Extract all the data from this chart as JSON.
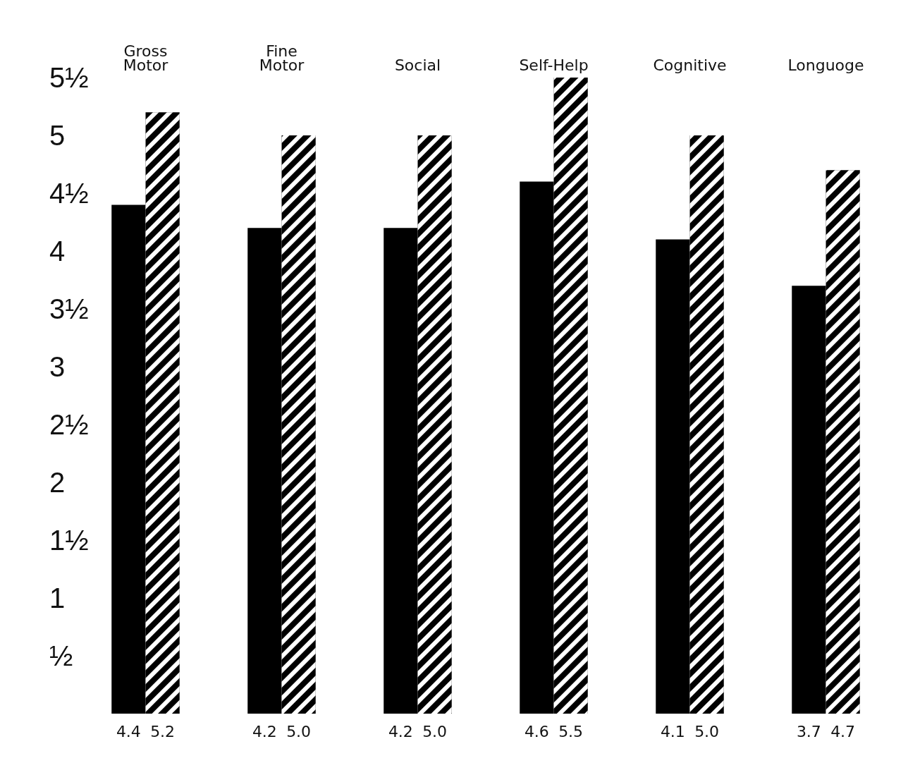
{
  "chart_data": {
    "type": "bar",
    "categories": [
      "Gross\nMotor",
      "Fine\nMotor",
      "Social",
      "Self-Help",
      "Cognitive",
      "Longuoge"
    ],
    "series": [
      {
        "color": "#000000",
        "values": [
          4.4,
          4.2,
          4.2,
          4.6,
          4.1,
          3.7
        ],
        "value_labels": [
          "4.4",
          "4.2",
          "4.2",
          "4.6",
          "4.1",
          "3.7"
        ]
      },
      {
        "color": "#000000",
        "values": [
          5.2,
          5.0,
          5.0,
          5.5,
          5.0,
          4.7
        ],
        "value_labels": [
          "5.2",
          "5.0",
          "5.0",
          "5.5",
          "5.0",
          "4.7"
        ]
      }
    ],
    "ylim": [
      0,
      5.5
    ],
    "yticks": [
      {
        "value": 0.5,
        "label": "½"
      },
      1,
      {
        "value": 1.5,
        "label": "1½"
      },
      2,
      {
        "value": 2.5,
        "label": "2½"
      },
      3,
      {
        "value": 3.5,
        "label": "3½"
      },
      4,
      {
        "value": 4.5,
        "label": "4½"
      },
      5,
      {
        "value": 5.5,
        "label": "5½"
      }
    ],
    "grid": false
  }
}
